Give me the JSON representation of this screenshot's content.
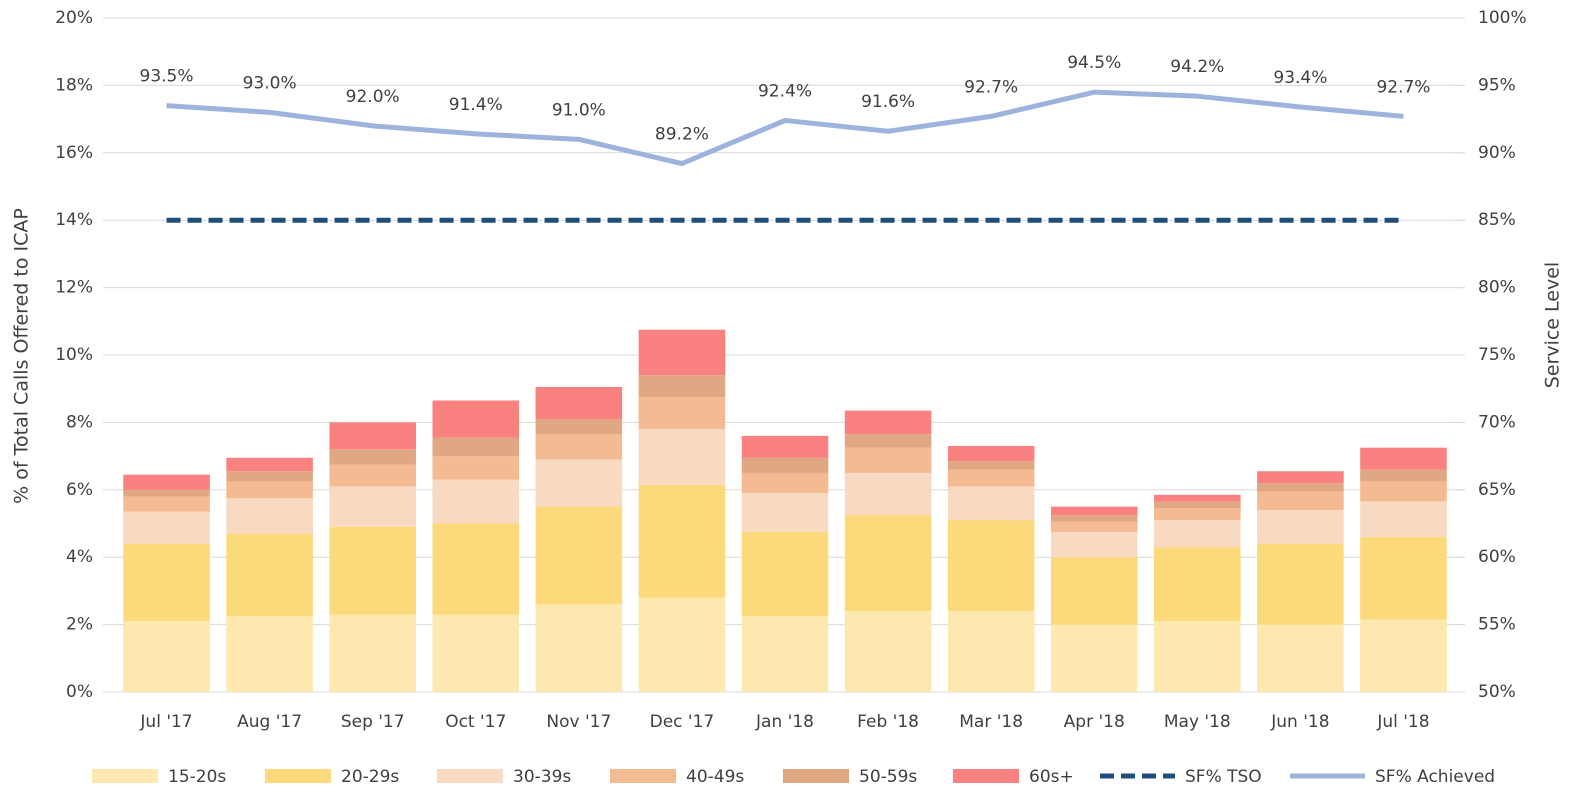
{
  "chart_data": {
    "type": "bar",
    "stacked": true,
    "ylabel": "% of Total Calls Offered to ICAP",
    "y2label": "Service Level",
    "categories": [
      "Jul '17",
      "Aug '17",
      "Sep '17",
      "Oct '17",
      "Nov '17",
      "Dec '17",
      "Jan '18",
      "Feb '18",
      "Mar '18",
      "Apr '18",
      "May '18",
      "Jun '18",
      "Jul '18"
    ],
    "ylim": [
      0,
      20
    ],
    "yticks": [
      {
        "value": 0,
        "label": "0%"
      },
      {
        "value": 2,
        "label": "2%"
      },
      {
        "value": 4,
        "label": "4%"
      },
      {
        "value": 6,
        "label": "6%"
      },
      {
        "value": 8,
        "label": "8%"
      },
      {
        "value": 10,
        "label": "10%"
      },
      {
        "value": 12,
        "label": "12%"
      },
      {
        "value": 14,
        "label": "14%"
      },
      {
        "value": 16,
        "label": "16%"
      },
      {
        "value": 18,
        "label": "18%"
      },
      {
        "value": 20,
        "label": "20%"
      }
    ],
    "y2lim": [
      50,
      100
    ],
    "y2ticks": [
      {
        "value": 50,
        "label": "50%"
      },
      {
        "value": 55,
        "label": "55%"
      },
      {
        "value": 60,
        "label": "60%"
      },
      {
        "value": 65,
        "label": "65%"
      },
      {
        "value": 70,
        "label": "70%"
      },
      {
        "value": 75,
        "label": "75%"
      },
      {
        "value": 80,
        "label": "80%"
      },
      {
        "value": 85,
        "label": "85%"
      },
      {
        "value": 90,
        "label": "90%"
      },
      {
        "value": 95,
        "label": "95%"
      },
      {
        "value": 100,
        "label": "100%"
      }
    ],
    "grid": true,
    "legend": "bottom",
    "series": [
      {
        "name": "15-20s",
        "type": "bar",
        "color": "#fde9b0",
        "values": [
          2.1,
          2.25,
          2.3,
          2.3,
          2.6,
          2.8,
          2.25,
          2.4,
          2.4,
          2.0,
          2.1,
          2.0,
          2.15
        ]
      },
      {
        "name": "20-29s",
        "type": "bar",
        "color": "#fcda7b",
        "values": [
          2.3,
          2.45,
          2.6,
          2.7,
          2.9,
          3.35,
          2.5,
          2.85,
          2.7,
          2.0,
          2.2,
          2.4,
          2.45
        ]
      },
      {
        "name": "30-39s",
        "type": "bar",
        "color": "#f8d9c2",
        "values": [
          0.95,
          1.05,
          1.2,
          1.3,
          1.4,
          1.65,
          1.15,
          1.25,
          1.0,
          0.75,
          0.8,
          1.0,
          1.05
        ]
      },
      {
        "name": "40-49s",
        "type": "bar",
        "color": "#f4bb92",
        "values": [
          0.45,
          0.5,
          0.65,
          0.7,
          0.75,
          0.95,
          0.6,
          0.75,
          0.5,
          0.3,
          0.35,
          0.55,
          0.6
        ]
      },
      {
        "name": "50-59s",
        "type": "bar",
        "color": "#dfa883",
        "values": [
          0.2,
          0.3,
          0.45,
          0.55,
          0.45,
          0.65,
          0.45,
          0.4,
          0.25,
          0.2,
          0.2,
          0.25,
          0.35
        ]
      },
      {
        "name": "60s+",
        "type": "bar",
        "color": "#f98180",
        "values": [
          0.45,
          0.4,
          0.8,
          1.1,
          0.95,
          1.35,
          0.65,
          0.7,
          0.45,
          0.25,
          0.2,
          0.35,
          0.65
        ]
      },
      {
        "name": "SF% TSO",
        "type": "line",
        "axis": "y2",
        "dashed": true,
        "color": "#1f4e79",
        "values": [
          85,
          85,
          85,
          85,
          85,
          85,
          85,
          85,
          85,
          85,
          85,
          85,
          85
        ]
      },
      {
        "name": "SF% Achieved",
        "type": "line",
        "axis": "y2",
        "dashed": false,
        "color": "#9db3de",
        "values": [
          93.5,
          93.0,
          92.0,
          91.4,
          91.0,
          89.2,
          92.4,
          91.6,
          92.7,
          94.5,
          94.2,
          93.4,
          92.7
        ],
        "value_labels": [
          "93.5%",
          "93.0%",
          "92.0%",
          "91.4%",
          "91.0%",
          "89.2%",
          "92.4%",
          "91.6%",
          "92.7%",
          "94.5%",
          "94.2%",
          "93.4%",
          "92.7%"
        ]
      }
    ]
  }
}
